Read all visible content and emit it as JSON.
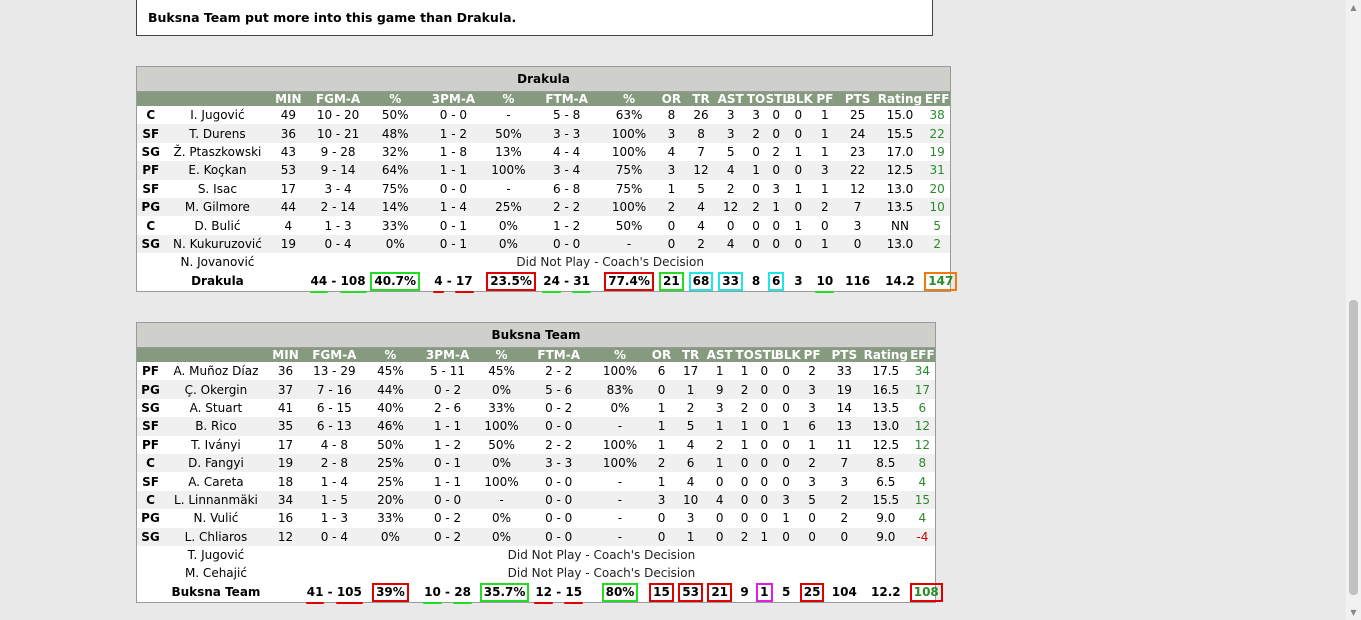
{
  "summary": "Buksna Team put more into this game than Drakula.",
  "columns": [
    "",
    "",
    "MIN",
    "FGM-A",
    "%",
    "3PM-A",
    "%",
    "FTM-A",
    "%",
    "OR",
    "TR",
    "AST",
    "TO",
    "STL",
    "BLK",
    "PF",
    "PTS",
    "Rating",
    "EFF"
  ],
  "teams": [
    {
      "name": "Drakula",
      "players": [
        {
          "pos": "C",
          "name": "I. Jugović",
          "min": "49",
          "fg": "10 - 20",
          "fgp": "50%",
          "tp": "0 - 0",
          "tpp": "-",
          "ft": "5 - 8",
          "ftp": "63%",
          "or": "8",
          "tr": "26",
          "ast": "3",
          "to": "3",
          "stl": "0",
          "blk": "0",
          "pf": "1",
          "pts": "25",
          "rating": "15.0",
          "eff": "38"
        },
        {
          "pos": "SF",
          "name": "T. Durens",
          "min": "36",
          "fg": "10 - 21",
          "fgp": "48%",
          "tp": "1 - 2",
          "tpp": "50%",
          "ft": "3 - 3",
          "ftp": "100%",
          "or": "3",
          "tr": "8",
          "ast": "3",
          "to": "2",
          "stl": "0",
          "blk": "0",
          "pf": "1",
          "pts": "24",
          "rating": "15.5",
          "eff": "22"
        },
        {
          "pos": "SG",
          "name": "Ž. Ptaszkowski",
          "min": "43",
          "fg": "9 - 28",
          "fgp": "32%",
          "tp": "1 - 8",
          "tpp": "13%",
          "ft": "4 - 4",
          "ftp": "100%",
          "or": "4",
          "tr": "7",
          "ast": "5",
          "to": "0",
          "stl": "2",
          "blk": "1",
          "pf": "1",
          "pts": "23",
          "rating": "17.0",
          "eff": "19"
        },
        {
          "pos": "PF",
          "name": "E. Koçkan",
          "min": "53",
          "fg": "9 - 14",
          "fgp": "64%",
          "tp": "1 - 1",
          "tpp": "100%",
          "ft": "3 - 4",
          "ftp": "75%",
          "or": "3",
          "tr": "12",
          "ast": "4",
          "to": "1",
          "stl": "0",
          "blk": "0",
          "pf": "3",
          "pts": "22",
          "rating": "12.5",
          "eff": "31"
        },
        {
          "pos": "SF",
          "name": "S. Isac",
          "min": "17",
          "fg": "3 - 4",
          "fgp": "75%",
          "tp": "0 - 0",
          "tpp": "-",
          "ft": "6 - 8",
          "ftp": "75%",
          "or": "1",
          "tr": "5",
          "ast": "2",
          "to": "0",
          "stl": "3",
          "blk": "1",
          "pf": "1",
          "pts": "12",
          "rating": "13.0",
          "eff": "20"
        },
        {
          "pos": "PG",
          "name": "M. Gilmore",
          "min": "44",
          "fg": "2 - 14",
          "fgp": "14%",
          "tp": "1 - 4",
          "tpp": "25%",
          "ft": "2 - 2",
          "ftp": "100%",
          "or": "2",
          "tr": "4",
          "ast": "12",
          "to": "2",
          "stl": "1",
          "blk": "0",
          "pf": "2",
          "pts": "7",
          "rating": "13.5",
          "eff": "10"
        },
        {
          "pos": "C",
          "name": "D. Bulić",
          "min": "4",
          "fg": "1 - 3",
          "fgp": "33%",
          "tp": "0 - 1",
          "tpp": "0%",
          "ft": "1 - 2",
          "ftp": "50%",
          "or": "0",
          "tr": "4",
          "ast": "0",
          "to": "0",
          "stl": "0",
          "blk": "1",
          "pf": "0",
          "pts": "3",
          "rating": "NN",
          "eff": "5"
        },
        {
          "pos": "SG",
          "name": "N. Kukuruzović",
          "min": "19",
          "fg": "0 - 4",
          "fgp": "0%",
          "tp": "0 - 1",
          "tpp": "0%",
          "ft": "0 - 0",
          "ftp": "-",
          "or": "0",
          "tr": "2",
          "ast": "4",
          "to": "0",
          "stl": "0",
          "blk": "0",
          "pf": "1",
          "pts": "0",
          "rating": "13.0",
          "eff": "2"
        }
      ],
      "dnp": [
        {
          "name": "N. Jovanović",
          "reason": "Did Not Play - Coach's Decision"
        }
      ],
      "total": {
        "label": "Drakula",
        "fgm": "44",
        "fga": "108",
        "fgp": "40.7%",
        "tpm": "4",
        "tpa": "17",
        "tpp": "23.5%",
        "ftm": "24",
        "fta": "31",
        "ftp": "77.4%",
        "or": "21",
        "tr": "68",
        "ast": "33",
        "to": "8",
        "stl": "6",
        "blk": "3",
        "pf": "10",
        "pts": "116",
        "rating": "14.2",
        "eff": "147"
      }
    },
    {
      "name": "Buksna Team",
      "players": [
        {
          "pos": "PF",
          "name": "A. Muñoz Díaz",
          "min": "36",
          "fg": "13 - 29",
          "fgp": "45%",
          "tp": "5 - 11",
          "tpp": "45%",
          "ft": "2 - 2",
          "ftp": "100%",
          "or": "6",
          "tr": "17",
          "ast": "1",
          "to": "1",
          "stl": "0",
          "blk": "0",
          "pf": "2",
          "pts": "33",
          "rating": "17.5",
          "eff": "34"
        },
        {
          "pos": "PG",
          "name": "Ç. Okergin",
          "min": "37",
          "fg": "7 - 16",
          "fgp": "44%",
          "tp": "0 - 2",
          "tpp": "0%",
          "ft": "5 - 6",
          "ftp": "83%",
          "or": "0",
          "tr": "1",
          "ast": "9",
          "to": "2",
          "stl": "0",
          "blk": "0",
          "pf": "3",
          "pts": "19",
          "rating": "16.5",
          "eff": "17"
        },
        {
          "pos": "SG",
          "name": "A. Stuart",
          "min": "41",
          "fg": "6 - 15",
          "fgp": "40%",
          "tp": "2 - 6",
          "tpp": "33%",
          "ft": "0 - 2",
          "ftp": "0%",
          "or": "1",
          "tr": "2",
          "ast": "3",
          "to": "2",
          "stl": "0",
          "blk": "0",
          "pf": "3",
          "pts": "14",
          "rating": "13.5",
          "eff": "6"
        },
        {
          "pos": "SF",
          "name": "B. Rico",
          "min": "35",
          "fg": "6 - 13",
          "fgp": "46%",
          "tp": "1 - 1",
          "tpp": "100%",
          "ft": "0 - 0",
          "ftp": "-",
          "or": "1",
          "tr": "5",
          "ast": "1",
          "to": "1",
          "stl": "0",
          "blk": "1",
          "pf": "6",
          "pts": "13",
          "rating": "13.0",
          "eff": "12"
        },
        {
          "pos": "PF",
          "name": "T. Iványi",
          "min": "17",
          "fg": "4 - 8",
          "fgp": "50%",
          "tp": "1 - 2",
          "tpp": "50%",
          "ft": "2 - 2",
          "ftp": "100%",
          "or": "1",
          "tr": "4",
          "ast": "2",
          "to": "1",
          "stl": "0",
          "blk": "0",
          "pf": "1",
          "pts": "11",
          "rating": "12.5",
          "eff": "12"
        },
        {
          "pos": "C",
          "name": "D. Fangyi",
          "min": "19",
          "fg": "2 - 8",
          "fgp": "25%",
          "tp": "0 - 1",
          "tpp": "0%",
          "ft": "3 - 3",
          "ftp": "100%",
          "or": "2",
          "tr": "6",
          "ast": "1",
          "to": "0",
          "stl": "0",
          "blk": "0",
          "pf": "2",
          "pts": "7",
          "rating": "8.5",
          "eff": "8"
        },
        {
          "pos": "SF",
          "name": "A. Careta",
          "min": "18",
          "fg": "1 - 4",
          "fgp": "25%",
          "tp": "1 - 1",
          "tpp": "100%",
          "ft": "0 - 0",
          "ftp": "-",
          "or": "1",
          "tr": "4",
          "ast": "0",
          "to": "0",
          "stl": "0",
          "blk": "0",
          "pf": "3",
          "pts": "3",
          "rating": "6.5",
          "eff": "4"
        },
        {
          "pos": "C",
          "name": "L. Linnanmäki",
          "min": "34",
          "fg": "1 - 5",
          "fgp": "20%",
          "tp": "0 - 0",
          "tpp": "-",
          "ft": "0 - 0",
          "ftp": "-",
          "or": "3",
          "tr": "10",
          "ast": "4",
          "to": "0",
          "stl": "0",
          "blk": "3",
          "pf": "5",
          "pts": "2",
          "rating": "15.5",
          "eff": "15"
        },
        {
          "pos": "PG",
          "name": "N. Vulić",
          "min": "16",
          "fg": "1 - 3",
          "fgp": "33%",
          "tp": "0 - 2",
          "tpp": "0%",
          "ft": "0 - 0",
          "ftp": "-",
          "or": "0",
          "tr": "3",
          "ast": "0",
          "to": "0",
          "stl": "0",
          "blk": "1",
          "pf": "0",
          "pts": "2",
          "rating": "9.0",
          "eff": "4"
        },
        {
          "pos": "SG",
          "name": "L. Chliaros",
          "min": "12",
          "fg": "0 - 4",
          "fgp": "0%",
          "tp": "0 - 2",
          "tpp": "0%",
          "ft": "0 - 0",
          "ftp": "-",
          "or": "0",
          "tr": "1",
          "ast": "0",
          "to": "2",
          "stl": "1",
          "blk": "0",
          "pf": "0",
          "pts": "0",
          "rating": "9.0",
          "eff": "-4"
        }
      ],
      "dnp": [
        {
          "name": "T. Jugović",
          "reason": "Did Not Play - Coach's Decision"
        },
        {
          "name": "M. Cehajić",
          "reason": "Did Not Play - Coach's Decision"
        }
      ],
      "total": {
        "label": "Buksna Team",
        "fgm": "41",
        "fga": "105",
        "fgp": "39%",
        "tpm": "10",
        "tpa": "28",
        "tpp": "35.7%",
        "ftm": "12",
        "fta": "15",
        "ftp": "80%",
        "or": "15",
        "tr": "53",
        "ast": "21",
        "to": "9",
        "stl": "1",
        "blk": "5",
        "pf": "25",
        "pts": "104",
        "rating": "12.2",
        "eff": "108"
      }
    }
  ],
  "annotations": {
    "drakula": {
      "fgm": "g-ul",
      "fga": "g-ul",
      "fgp": "g-box",
      "tpm": "r-ul",
      "tpa": "r-ul",
      "tpp": "r-box",
      "ftm": "g-ul",
      "fta": "g-ul",
      "ftp": "r-box",
      "or": "g-box",
      "tr": "c-box",
      "ast": "c-box",
      "stl": "c-box",
      "pf": "g-ul",
      "eff": "o-box"
    },
    "buksna": {
      "fgm": "r-ul",
      "fga": "r-ul",
      "fgp": "r-box",
      "tpm": "g-ul",
      "tpa": "g-ul",
      "tpp": "g-box",
      "ftm": "r-ul",
      "fta": "r-ul",
      "ftp": "g-box",
      "or": "r-box",
      "tr": "r-box",
      "ast": "r-box",
      "stl": "m-box",
      "pf": "r-box",
      "eff": "r-box"
    }
  },
  "colors": {
    "header_bg": "#869a7f",
    "title_bg": "#cfcfcc",
    "eff_green": "#2a8a2a",
    "eff_red": "#d00000"
  }
}
